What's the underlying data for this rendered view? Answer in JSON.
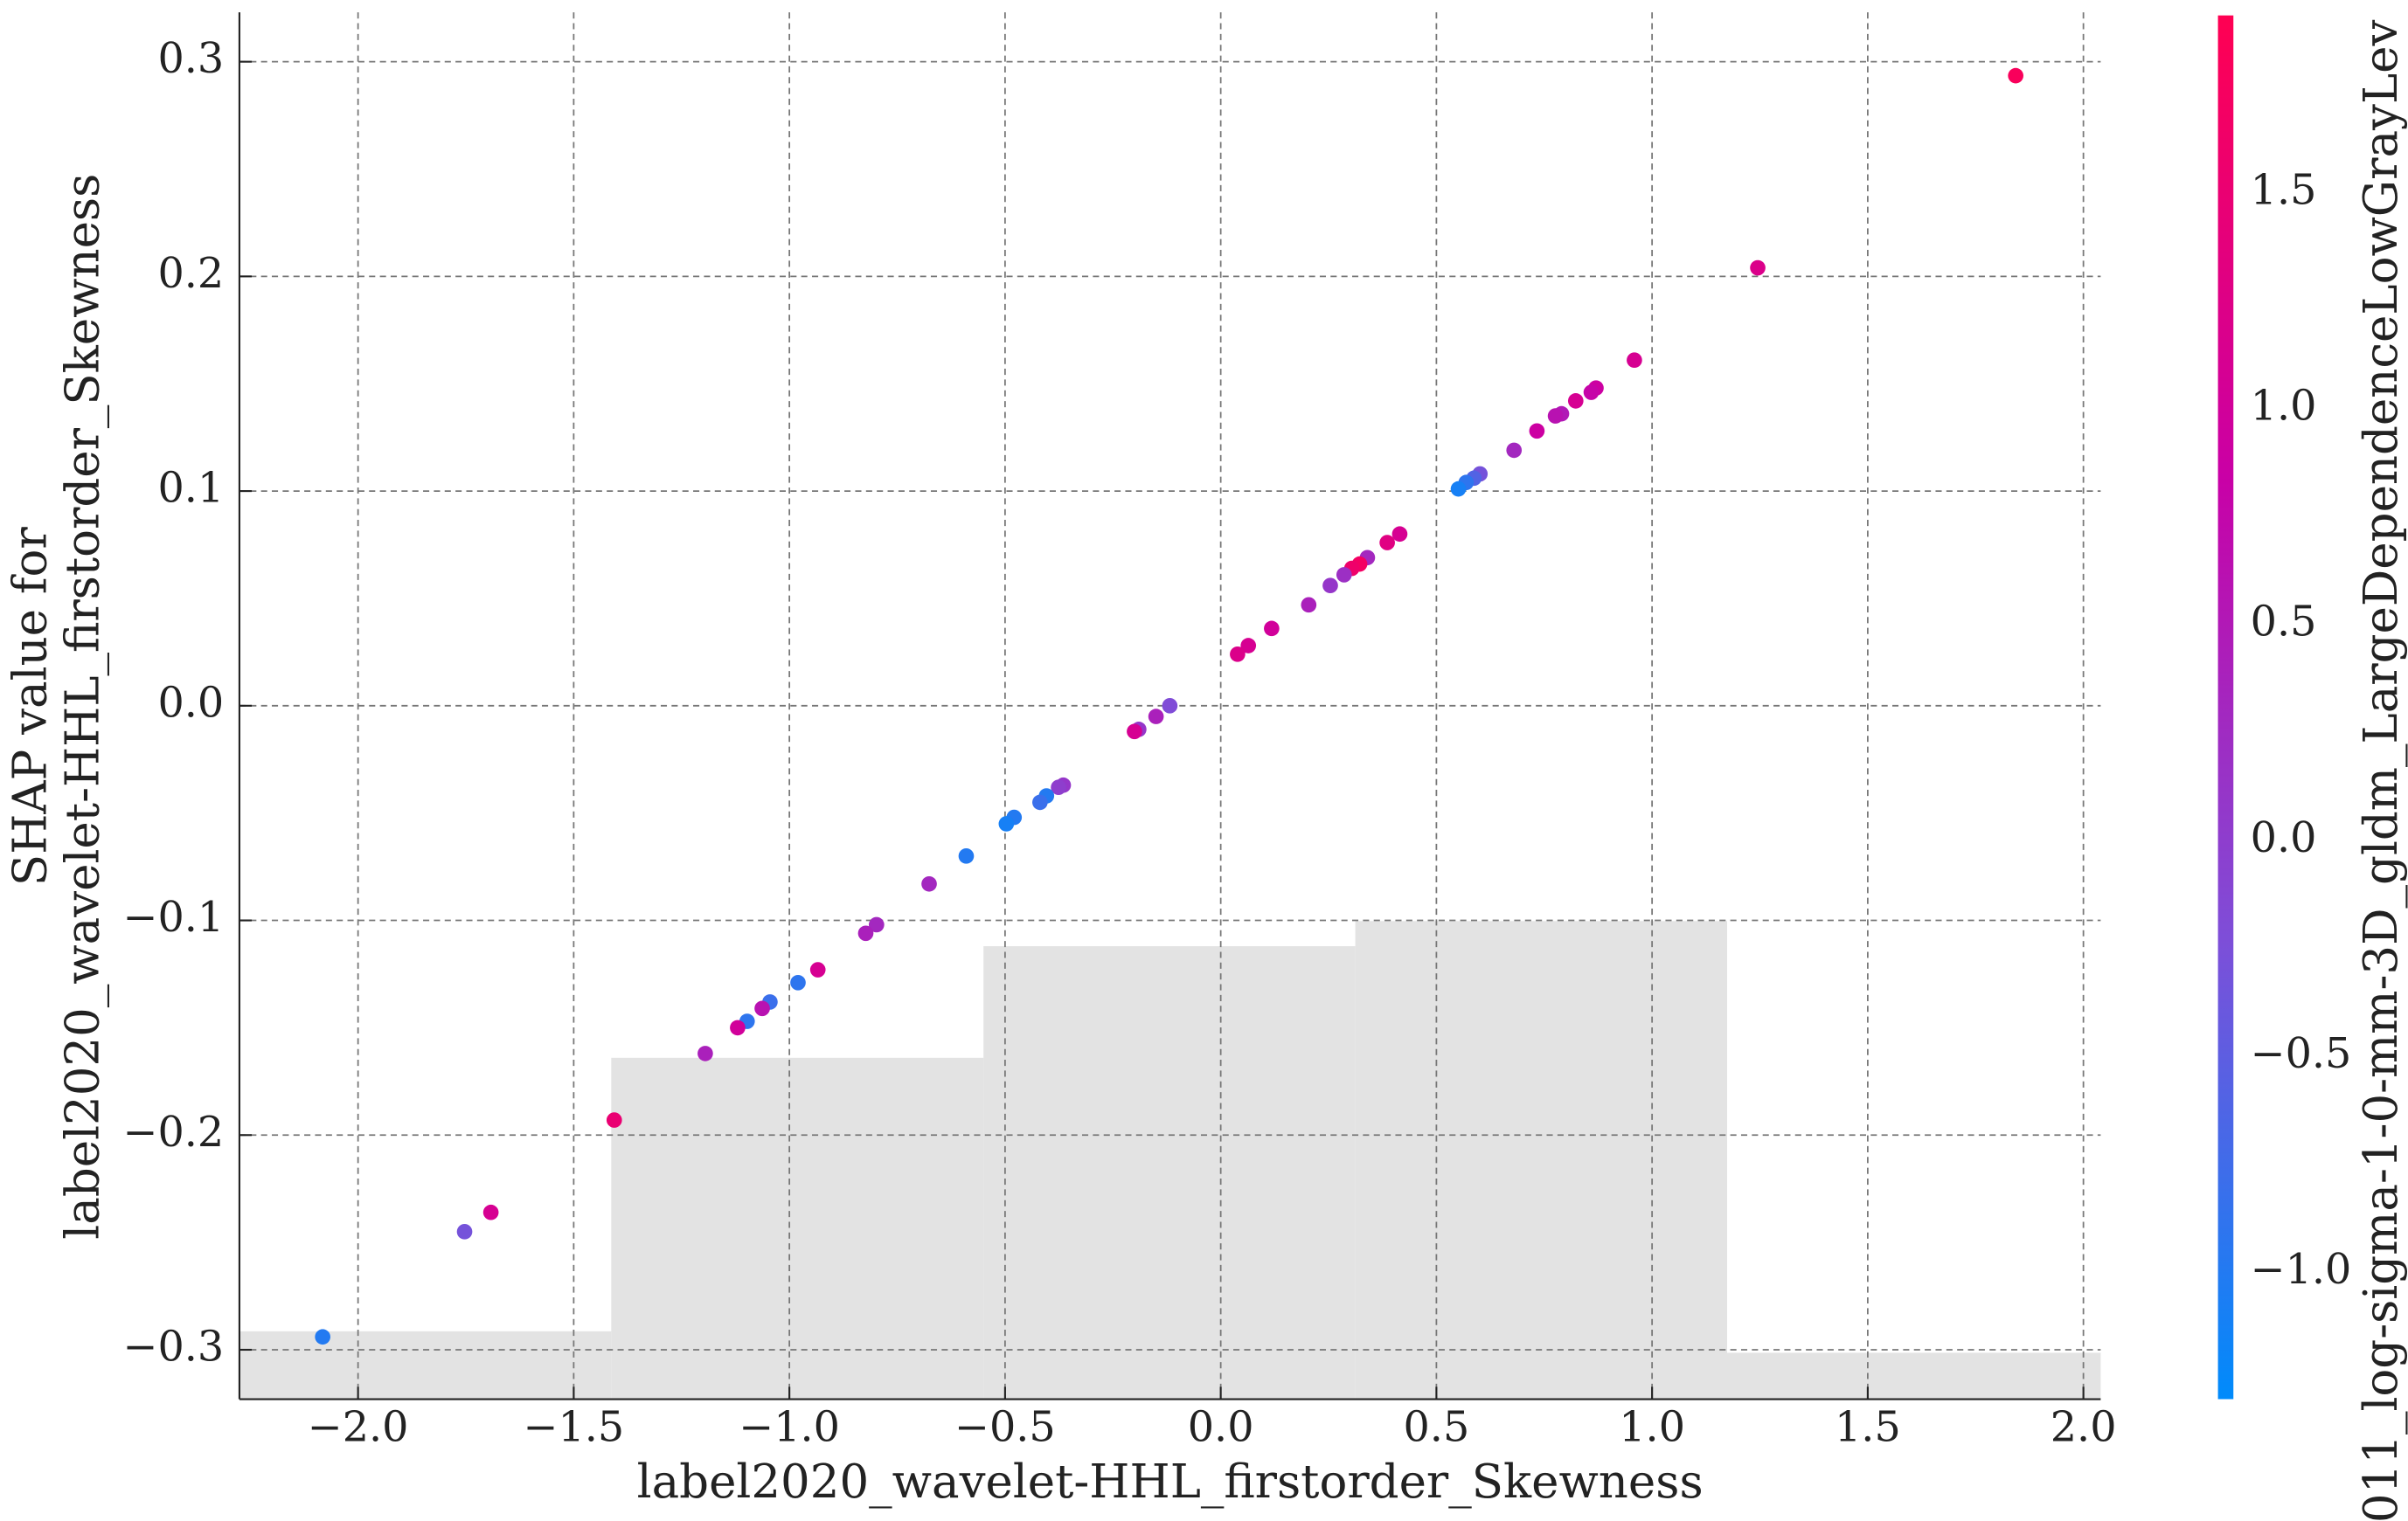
{
  "chart_data": {
    "type": "scatter",
    "xlabel": "label2020_wavelet-HHL_firstorder_Skewness",
    "ylabel": [
      "SHAP value for",
      "label2020_wavelet-HHL_firstorder_Skewness"
    ],
    "colorbar_label": "011_log-sigma-1-0-mm-3D_gldm_LargeDependenceLowGrayLev",
    "xlim": [
      -2.275,
      2.04
    ],
    "ylim": [
      -0.323,
      0.323
    ],
    "clim": [
      -1.293,
      1.911
    ],
    "colormap": [
      "#008bfb",
      "#7e4ed8",
      "#c900a6",
      "#ff0052"
    ],
    "grid": true,
    "xticks": [
      {
        "value": -2.0,
        "label": "−2.0"
      },
      {
        "value": -1.5,
        "label": "−1.5"
      },
      {
        "value": -1.0,
        "label": "−1.0"
      },
      {
        "value": -0.5,
        "label": "−0.5"
      },
      {
        "value": 0,
        "label": "0.0"
      },
      0.5,
      {
        "value": 1,
        "label": "1.0"
      },
      1.5,
      {
        "value": 2,
        "label": "2.0"
      }
    ],
    "yticks": [
      {
        "value": -0.3,
        "label": "−0.3"
      },
      {
        "value": -0.2,
        "label": "−0.2"
      },
      {
        "value": -0.1,
        "label": "−0.1"
      },
      {
        "value": 0,
        "label": "0.0"
      },
      0.1,
      0.2,
      0.3
    ],
    "cticks": [
      {
        "value": -1.0,
        "label": "−1.0"
      },
      {
        "value": -0.5,
        "label": "−0.5"
      },
      {
        "value": 0,
        "label": "0.0"
      },
      0.5,
      {
        "value": 1,
        "label": "1.0"
      },
      1.5
    ],
    "hist_bins": [
      -2.275,
      -1.413,
      -0.55,
      0.312,
      1.174,
      2.04
    ],
    "hist_tops": [
      -0.2914,
      -0.164,
      -0.112,
      -0.1003,
      -0.3014
    ],
    "hist_color": "#e3e3e3",
    "x": [
      1.843,
      1.245,
      0.959,
      0.87,
      0.859,
      0.823,
      0.79,
      0.776,
      0.733,
      0.68,
      0.601,
      0.587,
      0.569,
      0.551,
      0.415,
      0.386,
      0.34,
      0.322,
      0.304,
      0.286,
      0.254,
      0.118,
      0.064,
      0.039,
      0.204,
      -0.118,
      -0.15,
      -0.19,
      -0.2,
      -0.365,
      -0.376,
      -0.404,
      -0.419,
      -0.479,
      -0.497,
      -0.59,
      -0.676,
      -0.798,
      -0.823,
      -0.934,
      -0.98,
      -1.045,
      -1.063,
      -1.098,
      -1.12,
      -1.195,
      -1.406,
      -1.692,
      -1.753,
      -2.082
    ],
    "y": [
      0.2935,
      0.204,
      0.161,
      0.148,
      0.146,
      0.142,
      0.136,
      0.135,
      0.128,
      0.119,
      0.108,
      0.106,
      0.104,
      0.101,
      0.08,
      0.076,
      0.069,
      0.066,
      0.064,
      0.061,
      0.056,
      0.036,
      0.028,
      0.024,
      0.047,
      0.0,
      -0.005,
      -0.011,
      -0.012,
      -0.037,
      -0.038,
      -0.042,
      -0.045,
      -0.052,
      -0.055,
      -0.07,
      -0.083,
      -0.102,
      -0.106,
      -0.123,
      -0.129,
      -0.138,
      -0.141,
      -0.147,
      -0.15,
      -0.162,
      -0.193,
      -0.236,
      -0.245,
      -0.294
    ],
    "c": [
      1.8,
      1.2,
      1.1,
      0.9,
      0.8,
      1.1,
      0.5,
      0.6,
      0.9,
      0.3,
      -0.3,
      -0.6,
      -0.9,
      -1.1,
      1.1,
      1.3,
      0.3,
      1.7,
      1.6,
      0.2,
      0.1,
      1.0,
      1.1,
      1.2,
      0.4,
      -0.2,
      0.4,
      0.1,
      1.1,
      0.1,
      0.0,
      -1.0,
      -0.8,
      -1.0,
      -1.1,
      -1.0,
      0.3,
      0.3,
      0.4,
      1.1,
      -0.9,
      -0.8,
      0.6,
      -0.9,
      1.0,
      0.4,
      1.5,
      1.1,
      -0.3,
      -1.0
    ]
  }
}
